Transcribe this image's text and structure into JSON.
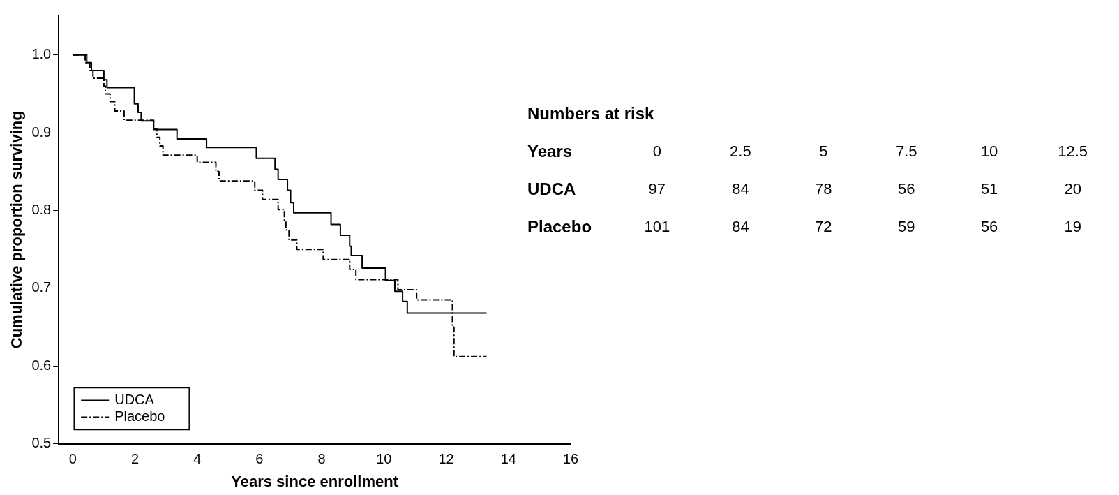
{
  "chart_data": [
    {
      "type": "step",
      "xlabel": "Years since enrollment",
      "ylabel": "Cumulative proportion surviving",
      "xlim": [
        -0.45,
        16
      ],
      "ylim": [
        0.5,
        1.05
      ],
      "xticks": [
        0,
        2,
        4,
        6,
        8,
        10,
        12,
        14,
        16
      ],
      "yticks": [
        {
          "value": 0.5,
          "label": "0.5"
        },
        {
          "value": 0.6,
          "label": "0.6"
        },
        {
          "value": 0.7,
          "label": "0.7"
        },
        {
          "value": 0.8,
          "label": "0.8"
        },
        {
          "value": 0.9,
          "label": "0.9"
        },
        {
          "value": 1,
          "label": "1.0"
        }
      ],
      "grid": false,
      "legend": "bottom left",
      "marker": "none",
      "series": [
        {
          "name": "UDCA",
          "color": "#000000",
          "line_style": "solid",
          "x": [
            0,
            0.45,
            0.6,
            1.0,
            1.1,
            1.98,
            2.1,
            2.2,
            2.6,
            3.35,
            4.3,
            5.9,
            6.5,
            6.6,
            6.9,
            7.0,
            7.1,
            8.3,
            8.6,
            8.9,
            8.95,
            9.3,
            10.05,
            10.35,
            10.6,
            10.75,
            13.3
          ],
          "values": [
            1.0,
            0.99,
            0.98,
            0.968,
            0.958,
            0.937,
            0.926,
            0.915,
            0.904,
            0.892,
            0.881,
            0.867,
            0.853,
            0.84,
            0.826,
            0.81,
            0.797,
            0.782,
            0.768,
            0.754,
            0.742,
            0.726,
            0.71,
            0.696,
            0.683,
            0.668,
            0.668
          ]
        },
        {
          "name": "Placebo",
          "color": "#000000",
          "line_style": "dashed",
          "x": [
            0,
            0.4,
            0.55,
            0.65,
            1.0,
            1.05,
            1.2,
            1.35,
            1.65,
            2.6,
            2.7,
            2.8,
            2.9,
            4.0,
            4.6,
            4.7,
            5.85,
            6.1,
            6.6,
            6.8,
            6.85,
            6.95,
            7.2,
            8.05,
            8.9,
            9.1,
            10.45,
            11.05,
            12.2,
            12.25,
            13.3
          ],
          "values": [
            1.0,
            0.99,
            0.98,
            0.97,
            0.96,
            0.95,
            0.94,
            0.928,
            0.916,
            0.905,
            0.894,
            0.883,
            0.871,
            0.862,
            0.85,
            0.838,
            0.826,
            0.814,
            0.801,
            0.787,
            0.775,
            0.762,
            0.75,
            0.737,
            0.724,
            0.711,
            0.698,
            0.685,
            0.65,
            0.612,
            0.612
          ]
        }
      ]
    },
    {
      "type": "heatmap",
      "title": "Numbers at risk",
      "xlabel": "Years",
      "categories": [
        "0",
        "2.5",
        "5",
        "7.5",
        "10",
        "12.5"
      ],
      "y_categories": [
        "UDCA",
        "Placebo"
      ],
      "data_labels": true,
      "cells": [
        [
          97,
          84,
          78,
          56,
          51,
          20
        ],
        [
          101,
          84,
          72,
          59,
          56,
          19
        ]
      ]
    }
  ]
}
